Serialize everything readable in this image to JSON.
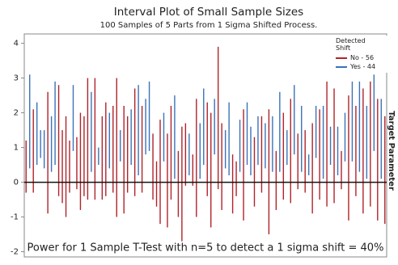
{
  "chart_data": {
    "type": "interval",
    "title": "Interval Plot of Small Sample Sizes",
    "subtitle": "100 Samples of 5 Parts from 1 Sigma Shifted Process.",
    "legend_title": "Detected Shift",
    "reference_label": "Target Parameter",
    "reference_line": 0,
    "annotation": "Power for 1 Sample T-Test with n=5 to detect a 1 sigma shift = 40%",
    "xlim": [
      0.5,
      100.5
    ],
    "ylim": [
      -2.15,
      4.27
    ],
    "yticks": [
      -2,
      -1,
      0,
      1,
      2,
      3,
      4
    ],
    "series": [
      {
        "name": "No - 56",
        "color": "#b0232a",
        "x": [
          1,
          3,
          7,
          10,
          11,
          12,
          13,
          15,
          16,
          17,
          18,
          20,
          22,
          23,
          25,
          26,
          28,
          29,
          31,
          33,
          36,
          37,
          38,
          40,
          41,
          43,
          44,
          45,
          47,
          48,
          51,
          52,
          54,
          55,
          58,
          59,
          61,
          64,
          66,
          68,
          70,
          72,
          74,
          76,
          78,
          80,
          82,
          84,
          86,
          88,
          90,
          92,
          94,
          96,
          98,
          100
        ],
        "low": [
          -0.3,
          -0.3,
          -0.9,
          -0.4,
          -0.6,
          -1.0,
          -0.3,
          -0.2,
          -0.8,
          -0.4,
          -0.5,
          -0.5,
          -0.5,
          -0.4,
          -0.3,
          -1.0,
          -0.9,
          -0.3,
          -0.4,
          -0.3,
          -0.5,
          -0.7,
          -1.2,
          -1.3,
          -0.5,
          -1.0,
          -1.7,
          -0.1,
          -0.1,
          -1.0,
          -0.4,
          -1.3,
          -0.2,
          -0.8,
          -0.9,
          -0.4,
          -1.1,
          -0.7,
          -0.3,
          -1.5,
          -0.8,
          -0.5,
          -0.6,
          -0.2,
          -0.3,
          -0.9,
          -0.5,
          -0.7,
          -0.6,
          -0.2,
          -1.1,
          -0.4,
          -0.9,
          -0.7,
          -1.1,
          -1.2
        ],
        "high": [
          1.2,
          2.1,
          2.6,
          2.8,
          1.5,
          1.9,
          1.2,
          1.3,
          2.0,
          1.9,
          3.0,
          3.0,
          1.9,
          2.3,
          2.2,
          3.0,
          2.2,
          1.9,
          2.7,
          2.2,
          1.4,
          0.6,
          1.8,
          1.4,
          2.2,
          0.9,
          1.6,
          1.7,
          0.8,
          2.4,
          2.3,
          2.0,
          3.9,
          1.7,
          0.8,
          0.6,
          2.1,
          1.3,
          1.9,
          2.1,
          0.9,
          2.0,
          2.4,
          1.4,
          1.5,
          1.7,
          2.1,
          2.9,
          2.7,
          0.9,
          2.5,
          2.2,
          2.7,
          2.9,
          2.4,
          1.9
        ]
      },
      {
        "name": "Yes - 44",
        "color": "#3a72b8",
        "x": [
          2,
          4,
          5,
          6,
          8,
          9,
          14,
          19,
          21,
          24,
          27,
          30,
          32,
          34,
          35,
          39,
          42,
          46,
          49,
          50,
          53,
          56,
          57,
          60,
          62,
          63,
          65,
          67,
          69,
          71,
          73,
          75,
          77,
          79,
          81,
          83,
          85,
          87,
          89,
          91,
          93,
          95,
          97,
          99
        ],
        "low": [
          0.4,
          0.5,
          0.7,
          0.4,
          0.3,
          0.5,
          0.9,
          0.3,
          0.5,
          0.4,
          0.6,
          0.5,
          0.2,
          0.8,
          0.9,
          0.6,
          0.1,
          0.2,
          0.1,
          0.5,
          0.8,
          0.4,
          0.2,
          0.3,
          0.5,
          0.2,
          0.5,
          0.4,
          0.3,
          0.3,
          0.5,
          0.8,
          0.3,
          0.2,
          0.7,
          0.1,
          0.5,
          0.2,
          0.6,
          0.6,
          0.3,
          0.1,
          0.9,
          0.1
        ],
        "high": [
          3.1,
          2.3,
          1.5,
          1.5,
          1.9,
          2.9,
          2.8,
          2.6,
          1.0,
          2.0,
          1.5,
          2.1,
          2.8,
          2.4,
          2.9,
          2.0,
          2.5,
          1.4,
          1.7,
          2.7,
          2.4,
          1.5,
          2.3,
          1.8,
          2.3,
          1.6,
          1.9,
          1.7,
          1.9,
          2.6,
          1.5,
          2.8,
          2.2,
          0.8,
          2.2,
          2.2,
          1.6,
          1.6,
          2.0,
          2.9,
          2.9,
          2.2,
          3.1,
          2.4
        ]
      }
    ]
  }
}
